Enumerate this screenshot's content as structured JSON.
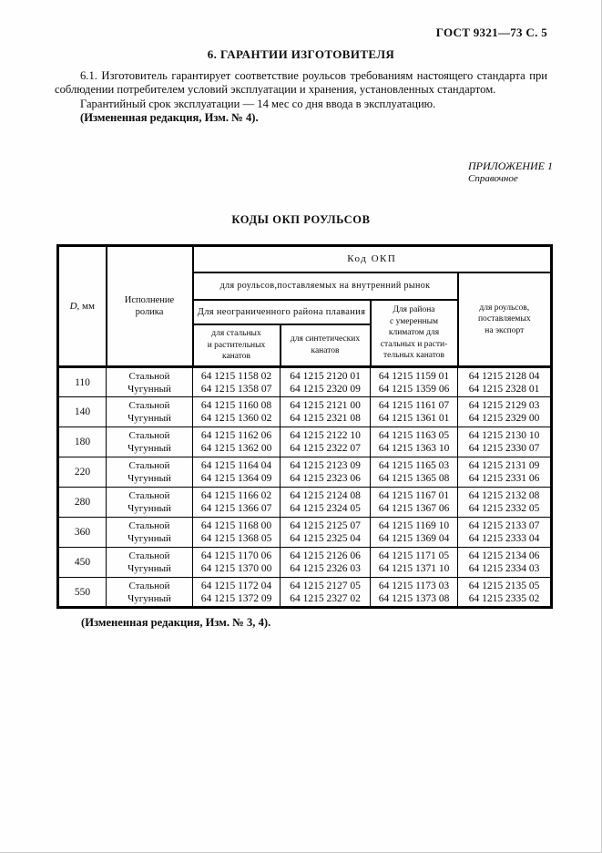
{
  "page": {
    "doc_ref": "ГОСТ 9321—73 С. 5",
    "section_title": "6.  ГАРАНТИИ ИЗГОТОВИТЕЛЯ",
    "para_61": "6.1.  Изготовитель гарантирует соответствие роульсов требованиям настоящего стандарта при соблюдении потребителем условий эксплуатации и хранения, установленных стандартом.",
    "para_warranty": "Гарантийный срок эксплуатации — 14 мес со дня ввода в эксплуатацию.",
    "para_amendment": "(Измененная редакция, Изм. № 4).",
    "appendix_label": "ПРИЛОЖЕНИЕ 1",
    "appendix_type": "Справочное",
    "table_title": "КОДЫ ОКП РОУЛЬСОВ",
    "footer_amendment": "(Измененная редакция, Изм. № 3, 4)."
  },
  "table": {
    "headers": {
      "diameter_d": "D",
      "diameter_unit": ", мм",
      "execution": "Исполнение\nролика",
      "code_group": "Код ОКП",
      "domestic": "для роульсов,поставляемых на внутренний рынок",
      "unlimited_area": "Для неограниченного района плавания",
      "steel_vegetable": "для стальных\nи растительных\nканатов",
      "synthetic": "для синтетических\nканатов",
      "moderate_climate": "Для района\nс умеренным\nклиматом для\nстальных и расти-\nтельных канатов",
      "export": "для роульсов,\nпоставляемых\nна экспорт"
    },
    "rows": [
      {
        "d": "110",
        "executions": [
          "Стальной",
          "Чугунный"
        ],
        "codes": [
          [
            "64 1215 1158 02",
            "64 1215 1358 07"
          ],
          [
            "64 1215 2120 01",
            "64 1215 2320 09"
          ],
          [
            "64 1215 1159 01",
            "64 1215 1359 06"
          ],
          [
            "64 1215 2128 04",
            "64 1215 2328 01"
          ]
        ]
      },
      {
        "d": "140",
        "executions": [
          "Стальной",
          "Чугунный"
        ],
        "codes": [
          [
            "64 1215 1160 08",
            "64 1215 1360 02"
          ],
          [
            "64 1215 2121 00",
            "64 1215 2321 08"
          ],
          [
            "64 1215 1161 07",
            "64 1215 1361 01"
          ],
          [
            "64 1215 2129 03",
            "64 1215 2329 00"
          ]
        ]
      },
      {
        "d": "180",
        "executions": [
          "Стальной",
          "Чугунный"
        ],
        "codes": [
          [
            "64 1215 1162 06",
            "64 1215 1362 00"
          ],
          [
            "64 1215 2122 10",
            "64 1215 2322 07"
          ],
          [
            "64 1215 1163 05",
            "64 1215 1363 10"
          ],
          [
            "64 1215 2130 10",
            "64 1215 2330 07"
          ]
        ]
      },
      {
        "d": "220",
        "executions": [
          "Стальной",
          "Чугунный"
        ],
        "codes": [
          [
            "64 1215 1164 04",
            "64 1215 1364 09"
          ],
          [
            "64 1215 2123 09",
            "64 1215 2323 06"
          ],
          [
            "64 1215 1165 03",
            "64 1215 1365 08"
          ],
          [
            "64 1215 2131 09",
            "64 1215 2331 06"
          ]
        ]
      },
      {
        "d": "280",
        "executions": [
          "Стальной",
          "Чугунный"
        ],
        "codes": [
          [
            "64 1215 1166 02",
            "64 1215 1366 07"
          ],
          [
            "64 1215 2124 08",
            "64 1215 2324 05"
          ],
          [
            "64 1215 1167 01",
            "64 1215 1367 06"
          ],
          [
            "64 1215 2132 08",
            "64 1215 2332 05"
          ]
        ]
      },
      {
        "d": "360",
        "executions": [
          "Стальной",
          "Чугунный"
        ],
        "codes": [
          [
            "64 1215 1168 00",
            "64 1215 1368 05"
          ],
          [
            "64 1215 2125 07",
            "64 1215 2325 04"
          ],
          [
            "64 1215 1169 10",
            "64 1215 1369 04"
          ],
          [
            "64 1215 2133 07",
            "64 1215 2333 04"
          ]
        ]
      },
      {
        "d": "450",
        "executions": [
          "Стальной",
          "Чугунный"
        ],
        "codes": [
          [
            "64 1215 1170 06",
            "64 1215 1370 00"
          ],
          [
            "64 1215 2126 06",
            "64 1215 2326 03"
          ],
          [
            "64 1215 1171 05",
            "64 1215 1371 10"
          ],
          [
            "64 1215 2134 06",
            "64 1215 2334 03"
          ]
        ]
      },
      {
        "d": "550",
        "executions": [
          "Стальной",
          "Чугунный"
        ],
        "codes": [
          [
            "64 1215 1172 04",
            "64 1215 1372 09"
          ],
          [
            "64 1215 2127 05",
            "64 1215 2327 02"
          ],
          [
            "64 1215 1173 03",
            "64 1215 1373 08"
          ],
          [
            "64 1215 2135 05",
            "64 1215 2335 02"
          ]
        ]
      }
    ]
  }
}
